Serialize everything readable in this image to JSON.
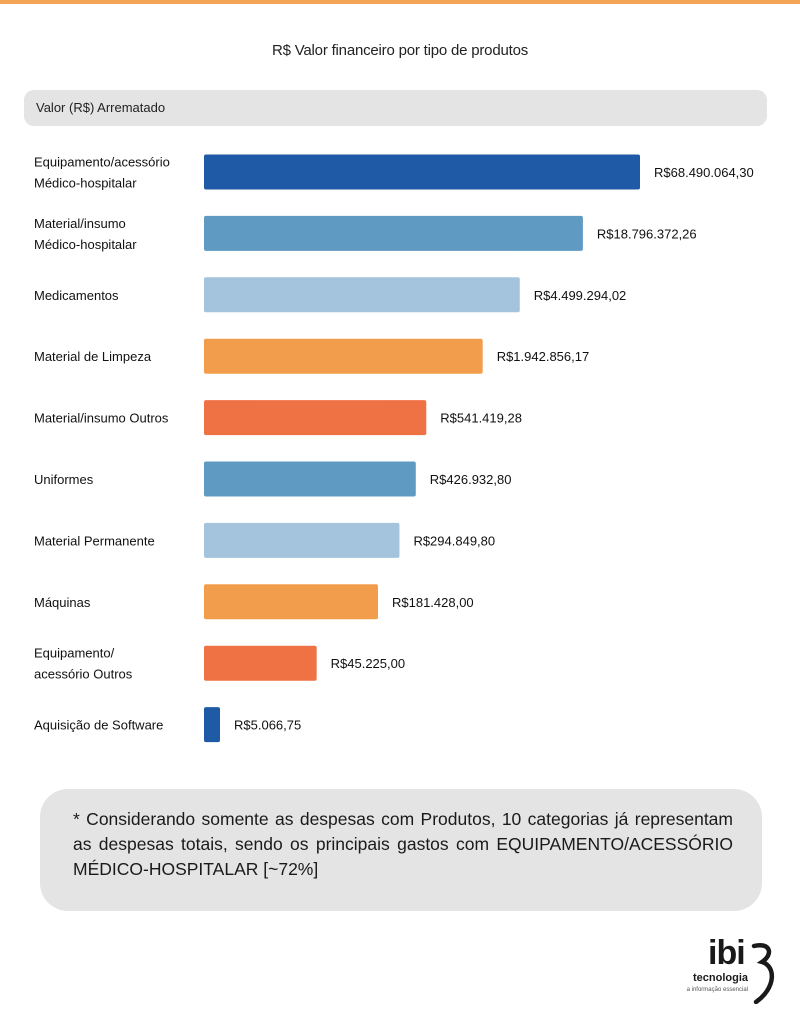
{
  "chart_title": "R$ Valor financeiro por tipo de produtos",
  "header": {
    "label": "Valor (R$) Arrematado"
  },
  "chart_data": {
    "type": "bar",
    "orientation": "horizontal",
    "title": "R$ Valor financeiro por tipo de produtos",
    "categories": [
      [
        "Equipamento/acessório",
        "Médico-hospitalar"
      ],
      [
        "Material/insumo",
        "Médico-hospitalar"
      ],
      [
        "Medicamentos"
      ],
      [
        "Material de Limpeza"
      ],
      [
        "Material/insumo Outros"
      ],
      [
        "Uniformes"
      ],
      [
        "Material Permanente"
      ],
      [
        "Máquinas"
      ],
      [
        "Equipamento/",
        "acessório Outros"
      ],
      [
        "Aquisição de Software"
      ]
    ],
    "values": [
      68490064.3,
      18796372.26,
      4499294.02,
      1942856.17,
      541419.28,
      426932.8,
      294849.8,
      181428.0,
      45225.0,
      5066.75
    ],
    "value_labels": [
      "R$68.490.064,30",
      "R$18.796.372,26",
      "R$4.499.294,02",
      "R$1.942.856,17",
      "R$541.419,28",
      "R$426.932,80",
      "R$294.849,80",
      "R$181.428,00",
      "R$45.225,00",
      "R$5.066,75"
    ],
    "bar_colors": [
      "#1f5aa6",
      "#5f9ac3",
      "#a3c4dc",
      "#f29d4b",
      "#ef7245",
      "#5f9ac3",
      "#a3c4dc",
      "#f29d4b",
      "#ef7245",
      "#1f5aa6"
    ],
    "scale": "log",
    "grid": false,
    "legend": "none"
  },
  "note": {
    "text": "* Considerando somente as despesas com Produtos, 10 categorias já representam as despesas totais, sendo os principais gastos com EQUIPAMENTO/ACESSÓRIO MÉDICO-HOSPITALAR [~72%]"
  },
  "logo": {
    "word": "ibi",
    "sub": "tecnologia",
    "tagline": "a informação essencial"
  }
}
